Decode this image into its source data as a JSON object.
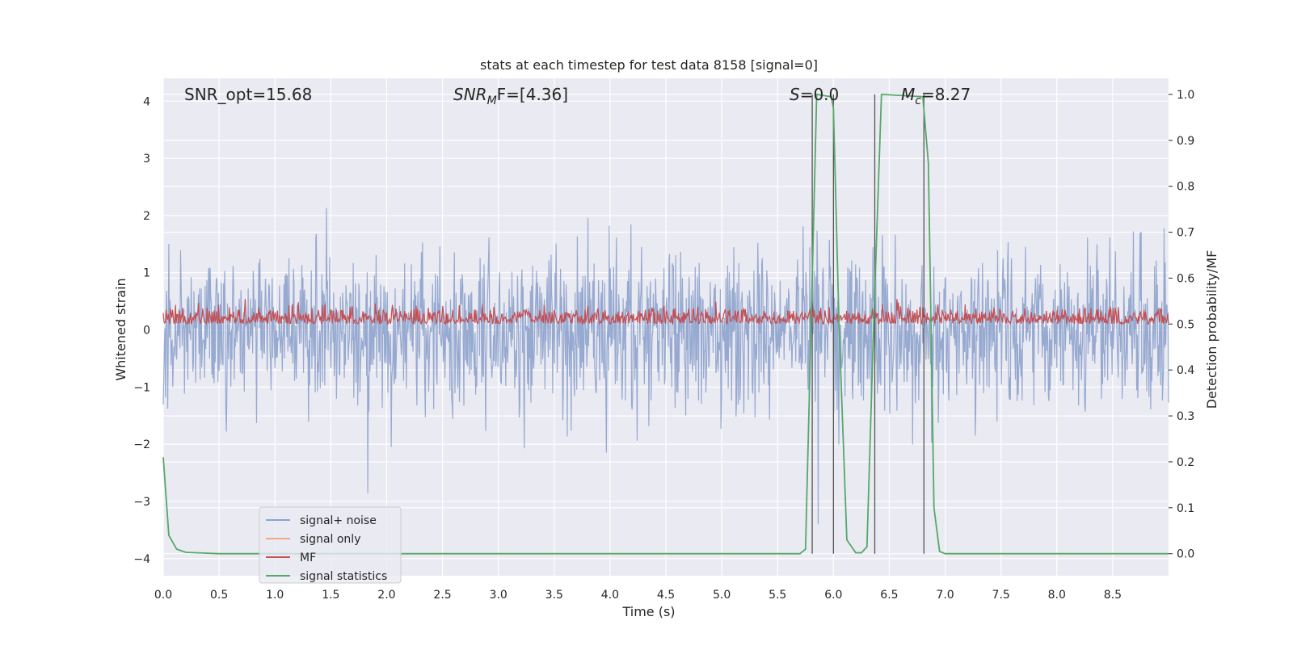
{
  "chart_data": {
    "type": "line",
    "title": "stats at each timestep for test data 8158 [signal=0]",
    "xlabel": "Time (s)",
    "ylabel": "Whitened strain",
    "ylabel_right": "Detection probability/MF",
    "xlim": [
      0,
      9.0
    ],
    "ylim": [
      -4.3,
      4.4
    ],
    "ylim_right": [
      -0.048,
      1.035
    ],
    "x_ticks": [
      "0.0",
      "0.5",
      "1.0",
      "1.5",
      "2.0",
      "2.5",
      "3.0",
      "3.5",
      "4.0",
      "4.5",
      "5.0",
      "5.5",
      "6.0",
      "6.5",
      "7.0",
      "7.5",
      "8.0",
      "8.5"
    ],
    "y_ticks": [
      "−4",
      "−3",
      "−2",
      "−1",
      "0",
      "1",
      "2",
      "3",
      "4"
    ],
    "y_right_ticks": [
      "0.0",
      "0.1",
      "0.2",
      "0.3",
      "0.4",
      "0.5",
      "0.6",
      "0.7",
      "0.8",
      "0.9",
      "1.0"
    ],
    "grid": true,
    "legend_placement": "lower-left",
    "annotations": {
      "snr_opt": "SNR_opt=15.68",
      "snr_mf_main": "SNR",
      "snr_mf_sub": "M",
      "snr_mf_tail": "F=[4.36]",
      "s_label": "S",
      "s_value": "=0.0",
      "mc_label": "M",
      "mc_sub": "c",
      "mc_value": "=8.27"
    },
    "series": [
      {
        "name": "signal+ noise",
        "color": "#8da2cc",
        "axis": "left",
        "description_envelope": {
          "typical_upper": 1.6,
          "typical_lower": -1.6,
          "peak_upper": 4.0,
          "peak_lower": -3.4,
          "x_range": [
            0,
            9.0
          ]
        }
      },
      {
        "name": "signal only",
        "color": "#f0a989",
        "axis": "left",
        "values": []
      },
      {
        "name": "MF",
        "color": "#c44e52",
        "axis": "right",
        "typical_range": [
          0.5,
          0.59
        ],
        "x_range": [
          0,
          9.0
        ]
      },
      {
        "name": "signal statistics",
        "color": "#55a868",
        "axis": "right",
        "points": [
          [
            0.0,
            0.21
          ],
          [
            0.05,
            0.04
          ],
          [
            0.12,
            0.01
          ],
          [
            0.2,
            0.003
          ],
          [
            0.5,
            0.0
          ],
          [
            3.0,
            0.0
          ],
          [
            5.7,
            0.0
          ],
          [
            5.75,
            0.01
          ],
          [
            5.8,
            0.5
          ],
          [
            5.85,
            1.0
          ],
          [
            5.98,
            0.995
          ],
          [
            6.0,
            0.97
          ],
          [
            6.05,
            0.5
          ],
          [
            6.12,
            0.03
          ],
          [
            6.2,
            0.002
          ],
          [
            6.25,
            0.002
          ],
          [
            6.3,
            0.015
          ],
          [
            6.36,
            0.5
          ],
          [
            6.43,
            1.0
          ],
          [
            6.8,
            0.995
          ],
          [
            6.85,
            0.85
          ],
          [
            6.9,
            0.1
          ],
          [
            6.95,
            0.005
          ],
          [
            7.0,
            0.0
          ],
          [
            9.0,
            0.0
          ]
        ]
      }
    ],
    "vertical_lines_x": [
      5.81,
      6.0,
      6.37,
      6.81
    ]
  },
  "legend_items": [
    {
      "label": "signal+ noise",
      "color": "#8da2cc"
    },
    {
      "label": "signal only",
      "color": "#f0a989"
    },
    {
      "label": "MF",
      "color": "#c44e52"
    },
    {
      "label": "signal statistics",
      "color": "#55a868"
    }
  ]
}
